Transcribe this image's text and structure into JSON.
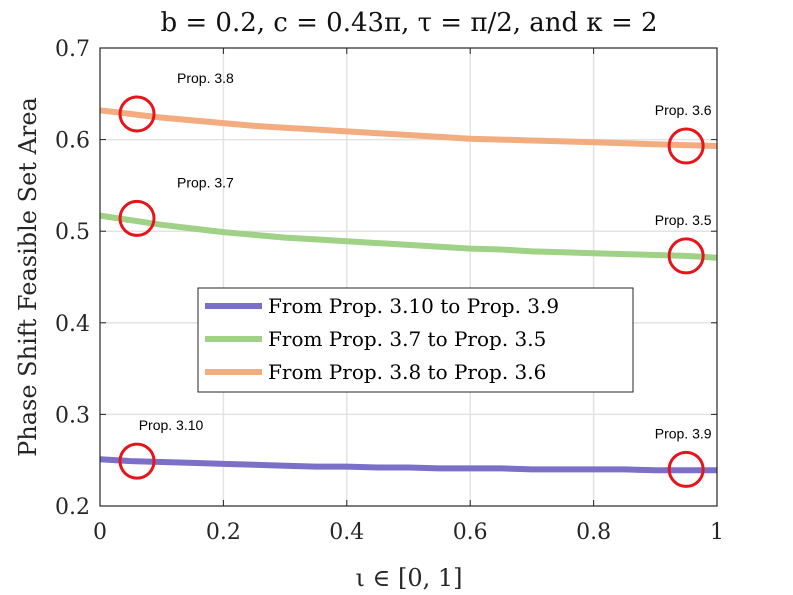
{
  "chart_data": {
    "type": "line",
    "title": "b = 0.2, c = 0.43π, τ = π/2, and κ = 2",
    "xlabel": "ι ∈ [0, 1]",
    "ylabel": "Phase Shift Feasible Set Area",
    "xlim": [
      0,
      1
    ],
    "ylim": [
      0.2,
      0.7
    ],
    "xticks": [
      "0",
      "0.2",
      "0.4",
      "0.6",
      "0.8",
      "1"
    ],
    "yticks": [
      "0.2",
      "0.3",
      "0.4",
      "0.5",
      "0.6",
      "0.7"
    ],
    "grid": true,
    "legend_position": "center",
    "x": [
      0,
      0.05,
      0.1,
      0.15,
      0.2,
      0.25,
      0.3,
      0.35,
      0.4,
      0.45,
      0.5,
      0.55,
      0.6,
      0.65,
      0.7,
      0.75,
      0.8,
      0.85,
      0.9,
      0.95,
      1.0
    ],
    "series": [
      {
        "name": "From Prop. 3.10 to Prop. 3.9",
        "color": "#7b6fc8",
        "values": [
          0.251,
          0.249,
          0.248,
          0.247,
          0.246,
          0.245,
          0.244,
          0.243,
          0.243,
          0.242,
          0.242,
          0.241,
          0.241,
          0.241,
          0.24,
          0.24,
          0.24,
          0.24,
          0.239,
          0.239,
          0.239
        ]
      },
      {
        "name": "From Prop. 3.7 to Prop. 3.5",
        "color": "#9fd186",
        "values": [
          0.517,
          0.512,
          0.507,
          0.503,
          0.499,
          0.496,
          0.493,
          0.491,
          0.489,
          0.487,
          0.485,
          0.483,
          0.481,
          0.48,
          0.478,
          0.477,
          0.476,
          0.475,
          0.474,
          0.473,
          0.471
        ]
      },
      {
        "name": "From Prop. 3.8 to Prop. 3.6",
        "color": "#f3ac80",
        "values": [
          0.632,
          0.628,
          0.624,
          0.621,
          0.618,
          0.615,
          0.613,
          0.611,
          0.609,
          0.607,
          0.605,
          0.603,
          0.601,
          0.6,
          0.599,
          0.598,
          0.597,
          0.596,
          0.595,
          0.594,
          0.593
        ]
      }
    ],
    "annotations": [
      {
        "label": "Prop. 3.8",
        "x": 0.06,
        "y": 0.628
      },
      {
        "label": "Prop. 3.6",
        "x": 0.95,
        "y": 0.593
      },
      {
        "label": "Prop. 3.7",
        "x": 0.06,
        "y": 0.514
      },
      {
        "label": "Prop. 3.5",
        "x": 0.95,
        "y": 0.473
      },
      {
        "label": "Prop. 3.10",
        "x": 0.06,
        "y": 0.249
      },
      {
        "label": "Prop. 3.9",
        "x": 0.95,
        "y": 0.24
      }
    ],
    "circle_color": "#e8141b"
  }
}
